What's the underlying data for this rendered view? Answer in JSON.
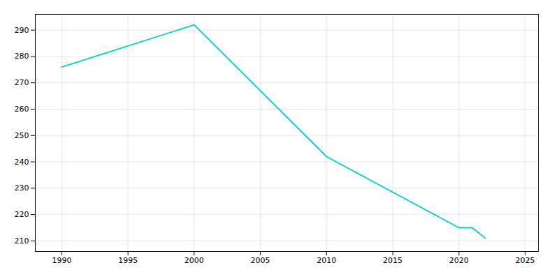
{
  "chart_data": {
    "type": "line",
    "x": [
      1990,
      2000,
      2010,
      2020,
      2021,
      2022
    ],
    "values": [
      276,
      292,
      242,
      215,
      215,
      211
    ],
    "color": "#00CED1",
    "xlim": [
      1988,
      2026
    ],
    "ylim": [
      206,
      296
    ],
    "xticks": [
      1990,
      1995,
      2000,
      2005,
      2010,
      2015,
      2020,
      2025
    ],
    "yticks": [
      210,
      220,
      230,
      240,
      250,
      260,
      270,
      280,
      290
    ],
    "grid": true
  }
}
